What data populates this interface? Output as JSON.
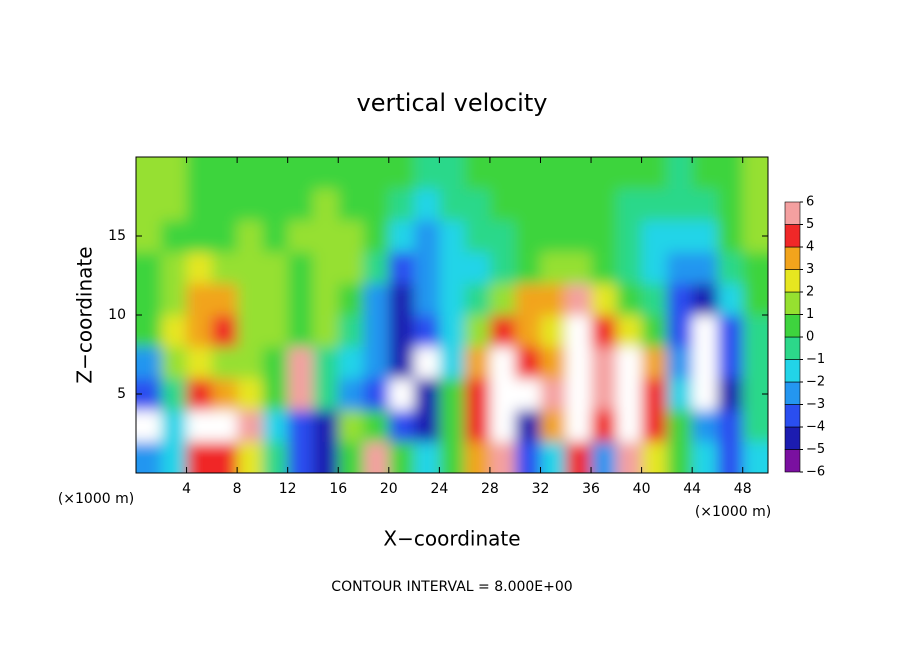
{
  "chart_data": {
    "type": "heatmap",
    "title": "vertical velocity",
    "xlabel": "X−coordinate",
    "ylabel": "Z−coordinate",
    "x_unit": "(×1000 m)",
    "x_unit_right": "(×1000 m)",
    "footer": "CONTOUR INTERVAL = 8.000E+00",
    "xlim": [
      0,
      50
    ],
    "ylim": [
      0,
      20
    ],
    "xticks": [
      4,
      8,
      12,
      16,
      20,
      24,
      28,
      32,
      36,
      40,
      44,
      48
    ],
    "yticks": [
      5,
      10,
      15
    ],
    "x": [
      1,
      3,
      5,
      7,
      9,
      11,
      13,
      15,
      17,
      19,
      21,
      23,
      25,
      27,
      29,
      31,
      33,
      35,
      37,
      39,
      41,
      43,
      45,
      47,
      49
    ],
    "y": [
      1,
      3,
      5,
      7,
      9,
      11,
      13,
      15,
      17,
      19
    ],
    "z": [
      [
        -3,
        -2,
        4,
        4,
        2,
        -1,
        -4,
        -5,
        0,
        5,
        0,
        -2,
        0,
        3,
        5,
        -4,
        -2,
        4,
        -3,
        5,
        2,
        0,
        -2,
        -4,
        -2
      ],
      [
        8,
        -2,
        8,
        8,
        5,
        -2,
        -4,
        -5,
        1,
        0,
        -4,
        -5,
        0,
        4,
        8,
        -5,
        3,
        6,
        4,
        8,
        4,
        0,
        -3,
        -4,
        -1
      ],
      [
        -4,
        -1,
        4,
        3,
        2,
        0,
        5,
        -1,
        -3,
        -4,
        8,
        -5,
        0,
        4,
        8,
        8,
        5,
        8,
        5,
        8,
        4,
        -2,
        8,
        -5,
        -1
      ],
      [
        -3,
        1,
        2,
        1,
        1,
        0,
        5,
        -1,
        -2,
        -3,
        -5,
        8,
        -2,
        3,
        8,
        4,
        3,
        8,
        5,
        6,
        3,
        -3,
        8,
        -4,
        -1
      ],
      [
        0,
        2,
        3,
        4,
        1,
        1,
        0,
        1,
        -1,
        -3,
        -5,
        -4,
        -2,
        1,
        4,
        3,
        2,
        6,
        4,
        2,
        0,
        -4,
        8,
        -4,
        -1
      ],
      [
        0,
        1,
        3,
        3,
        1,
        1,
        0,
        1,
        0,
        -3,
        -5,
        -3,
        -2,
        -1,
        1,
        3,
        3,
        5,
        2,
        0,
        -1,
        -4,
        -5,
        -2,
        0
      ],
      [
        0,
        1,
        2,
        1,
        1,
        1,
        0,
        1,
        1,
        -1,
        -4,
        -3,
        -2,
        -2,
        -1,
        0,
        1,
        1,
        0,
        -1,
        -2,
        -3,
        -3,
        -1,
        0
      ],
      [
        1,
        0,
        0,
        0,
        1,
        0,
        1,
        1,
        1,
        0,
        -2,
        -3,
        -2,
        -1,
        -1,
        0,
        0,
        0,
        0,
        -1,
        -2,
        -2,
        -2,
        0,
        1
      ],
      [
        1,
        1,
        0,
        0,
        0,
        0,
        0,
        1,
        0,
        0,
        -1,
        -2,
        -1,
        -1,
        0,
        0,
        0,
        0,
        0,
        -1,
        -1,
        -1,
        -1,
        0,
        1
      ],
      [
        1,
        1,
        0,
        0,
        0,
        0,
        0,
        0,
        0,
        0,
        0,
        -1,
        -1,
        0,
        0,
        0,
        0,
        0,
        0,
        0,
        0,
        -1,
        0,
        0,
        1
      ]
    ],
    "levels": [
      {
        "value": -6,
        "label": "−6"
      },
      {
        "value": -5,
        "label": "−5"
      },
      {
        "value": -4,
        "label": "−4"
      },
      {
        "value": -3,
        "label": "−3"
      },
      {
        "value": -2,
        "label": "−2"
      },
      {
        "value": -1,
        "label": "−1"
      },
      0,
      1,
      2,
      3,
      4,
      5,
      6
    ],
    "colors": [
      "#7a10a0",
      "#1c1cb0",
      "#2a4ef0",
      "#2496f0",
      "#22d4e8",
      "#2cd88a",
      "#3ed43e",
      "#96e030",
      "#e6e620",
      "#f2a41c",
      "#f02828",
      "#f4a0a0"
    ],
    "over_color": "#ffffff",
    "under_color": "#5a0080"
  }
}
